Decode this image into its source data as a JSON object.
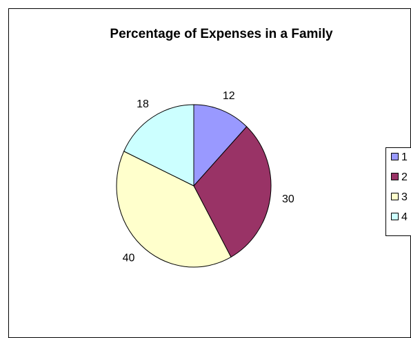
{
  "chart_data": {
    "type": "pie",
    "title": "Percentage of Expenses in a Family",
    "categories": [
      "1",
      "2",
      "3",
      "4"
    ],
    "values": [
      12,
      30,
      40,
      18
    ],
    "data_labels": [
      "12",
      "30",
      "40",
      "18"
    ],
    "colors": [
      "#9999ff",
      "#993366",
      "#ffffcc",
      "#ccffff"
    ],
    "legend": {
      "position": "right",
      "entries": [
        "1",
        "2",
        "3",
        "4"
      ]
    }
  }
}
